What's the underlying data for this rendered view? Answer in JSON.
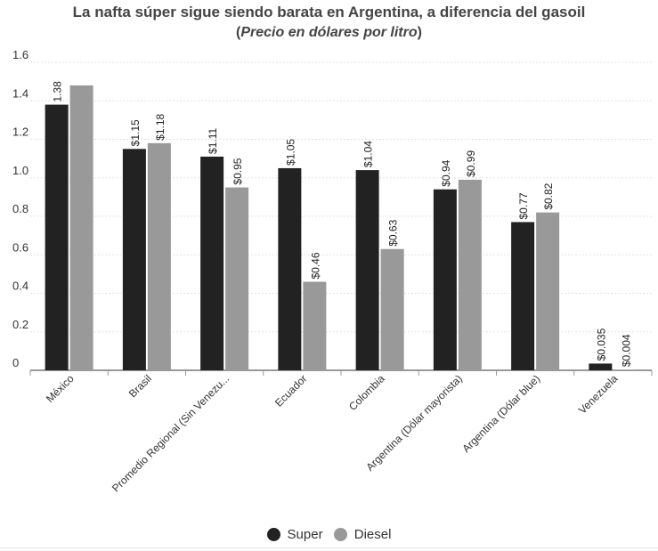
{
  "chart_data": {
    "type": "bar",
    "title": "La nafta súper sigue siendo barata en Argentina, a diferencia del gasoil",
    "subtitle": {
      "open": "(",
      "text": "Precio en dólares por litro",
      "close": ")"
    },
    "categories": [
      "México",
      "Brasil",
      "Promedio Regional (Sin Venezu...",
      "Ecuador",
      "Colombia",
      "Argentina (Dólar mayorista)",
      "Argentina (Dólar blue)",
      "Venezuela"
    ],
    "series": [
      {
        "name": "Super",
        "color": "#222222",
        "values": [
          1.38,
          1.15,
          1.11,
          1.05,
          1.04,
          0.94,
          0.77,
          0.035
        ],
        "labels": [
          "1.38",
          "$1.15",
          "$1.11",
          "$1.05",
          "$1.04",
          "$0.94",
          "$0.77",
          "$0.035"
        ]
      },
      {
        "name": "Diesel",
        "color": "#999999",
        "values": [
          1.48,
          1.18,
          0.95,
          0.46,
          0.63,
          0.99,
          0.82,
          0.004
        ],
        "labels": [
          "",
          "$1.18",
          "$0.95",
          "$0.46",
          "$0.63",
          "$0.99",
          "$0.82",
          "$0.004"
        ]
      }
    ],
    "yticks": [
      "0",
      "0.2",
      "0.4",
      "0.6",
      "0.8",
      "1.0",
      "1.2",
      "1.4",
      "1.6"
    ],
    "ylim": [
      0,
      1.6
    ],
    "grid": true,
    "legend_position": "bottom"
  }
}
